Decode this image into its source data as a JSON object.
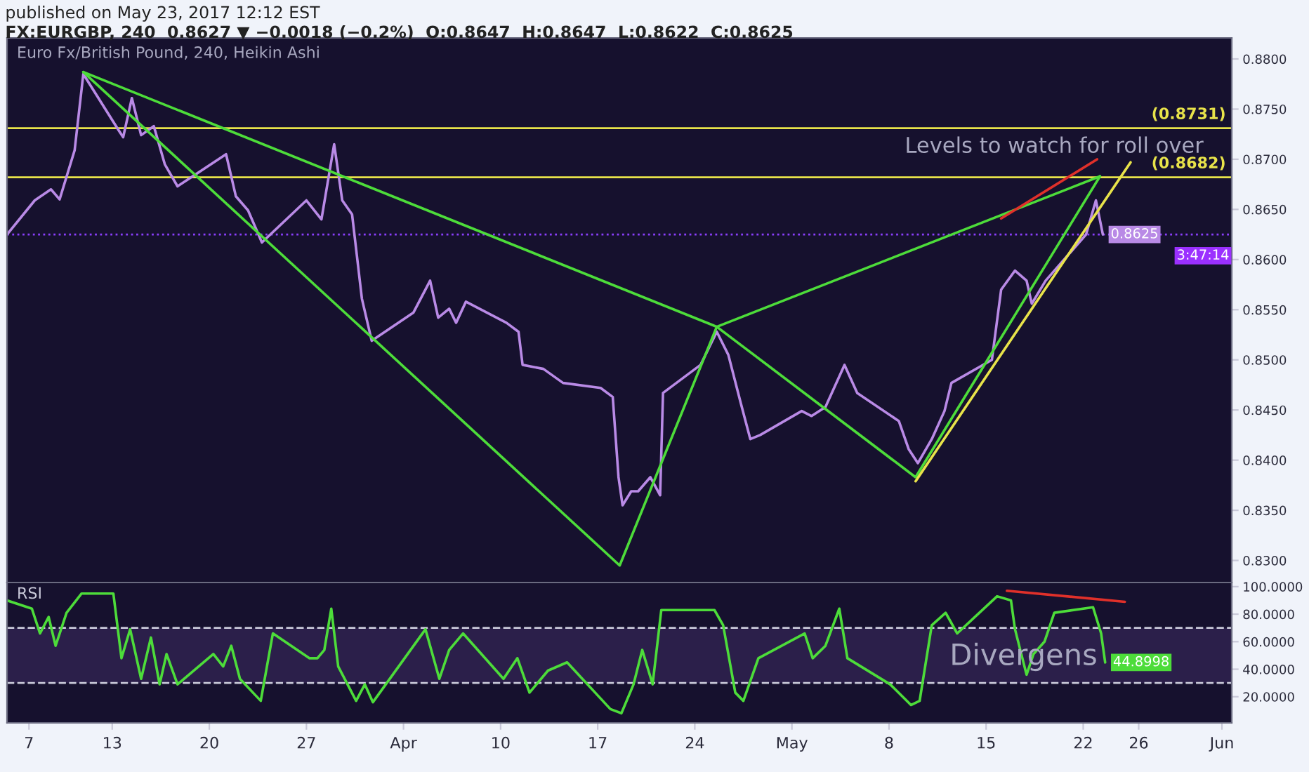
{
  "chart_data": [
    {
      "type": "line",
      "title": "published on May 23, 2017 12:12 EST",
      "subtitle": "FX:EURGBP, 240  0.8627 ▼ −0.0018 (−0.2%)  O:0.8647  H:0.8647  L:0.8622  C:0.8625",
      "annotations": [
        "Euro Fx/British Pound, 240, Heikin Ashi",
        "3:47:14",
        "Levels to watch for roll over"
      ],
      "series": [
        {
          "color": "#b98ae6",
          "x": [
            "2017-03-05T10:00",
            "2017-03-07T10:00",
            "2017-03-08T14:00",
            "2017-03-09T05:00",
            "2017-03-10T07:00",
            "2017-03-10T22:00",
            "2017-03-13T11:00",
            "2017-03-13T19:00",
            "2017-03-14T10:00",
            "2017-03-15T02:00",
            "2017-03-16T00:00",
            "2017-03-16T19:00",
            "2017-03-17T17:00",
            "2017-03-21T05:00",
            "2017-03-21T22:00",
            "2017-03-22T19:00",
            "2017-03-23T19:00",
            "2017-03-27T00:00",
            "2017-03-28T02:00",
            "2017-03-29T00:00",
            "2017-03-29T14:00",
            "2017-03-30T07:00",
            "2017-03-31T00:00",
            "2017-03-31T17:00",
            "2017-04-03T17:00",
            "2017-04-04T22:00",
            "2017-04-05T12:00",
            "2017-04-06T07:00",
            "2017-04-06T19:00",
            "2017-04-07T12:00",
            "2017-04-10T10:00",
            "2017-04-11T07:00",
            "2017-04-11T14:00",
            "2017-04-13T02:00",
            "2017-04-14T12:00",
            "2017-04-17T05:00",
            "2017-04-18T02:00",
            "2017-04-18T12:00",
            "2017-04-18T19:00",
            "2017-04-19T10:00",
            "2017-04-19T22:00",
            "2017-04-20T19:00",
            "2017-04-21T12:00",
            "2017-04-21T17:00",
            "2017-04-24T10:00",
            "2017-04-25T14:00",
            "2017-04-26T10:00",
            "2017-04-27T07:00",
            "2017-04-28T00:00",
            "2017-04-28T17:00",
            "2017-05-01T17:00",
            "2017-05-02T10:00",
            "2017-05-03T10:00",
            "2017-05-04T19:00",
            "2017-05-05T17:00",
            "2017-05-08T17:00",
            "2017-05-09T10:00",
            "2017-05-10T02:00",
            "2017-05-11T02:00",
            "2017-05-12T00:00",
            "2017-05-12T12:00",
            "2017-05-15T10:00",
            "2017-05-16T02:00",
            "2017-05-17T02:00",
            "2017-05-17T22:00",
            "2017-05-18T07:00",
            "2017-05-19T07:00",
            "2017-05-22T05:00",
            "2017-05-22T22:00",
            "2017-05-23T10:00"
          ],
          "values": [
            0.8625,
            0.8659,
            0.867,
            0.866,
            0.8709,
            0.8785,
            0.8729,
            0.8722,
            0.8761,
            0.8724,
            0.8733,
            0.8695,
            0.8673,
            0.8705,
            0.8663,
            0.8649,
            0.8617,
            0.8659,
            0.864,
            0.8715,
            0.8659,
            0.8645,
            0.8561,
            0.8519,
            0.8547,
            0.8579,
            0.8542,
            0.8551,
            0.8537,
            0.8558,
            0.8537,
            0.8528,
            0.8495,
            0.8491,
            0.8477,
            0.8472,
            0.8463,
            0.8383,
            0.8355,
            0.8369,
            0.8369,
            0.8383,
            0.8365,
            0.8467,
            0.8495,
            0.8528,
            0.8505,
            0.8458,
            0.8421,
            0.8425,
            0.8449,
            0.8444,
            0.8453,
            0.8495,
            0.8467,
            0.8439,
            0.8411,
            0.8397,
            0.8421,
            0.8449,
            0.8477,
            0.85,
            0.857,
            0.8589,
            0.8579,
            0.8556,
            0.8579,
            0.8625,
            0.8659,
            0.8625
          ],
          "value_labels": [
            null,
            null,
            null,
            null,
            null,
            null,
            null,
            null,
            null,
            null,
            null,
            null,
            null,
            null,
            null,
            null,
            null,
            null,
            null,
            null,
            null,
            null,
            null,
            null,
            null,
            null,
            null,
            null,
            null,
            null,
            null,
            null,
            null,
            null,
            null,
            null,
            null,
            null,
            null,
            null,
            null,
            null,
            null,
            null,
            null,
            null,
            null,
            null,
            null,
            null,
            null,
            null,
            null,
            null,
            null,
            null,
            null,
            null,
            null,
            null,
            null,
            null,
            null,
            null,
            null,
            null,
            null,
            null,
            null,
            "0.8625"
          ]
        },
        {
          "color": "#4ddc3a",
          "x": [
            "2017-03-10T22:00",
            "2017-04-18T14:00",
            "2017-04-25T14:00",
            "2017-05-09T22:00",
            "2017-05-23T05:00"
          ],
          "values": [
            0.8787,
            0.8295,
            0.8533,
            0.8383,
            0.8683
          ]
        },
        {
          "color": "#4ddc3a",
          "x": [
            "2017-03-10T22:00",
            "2017-04-25T14:00"
          ],
          "values": [
            0.8787,
            0.8533
          ]
        },
        {
          "color": "#4ddc3a",
          "x": [
            "2017-04-25T14:00",
            "2017-05-23T05:00"
          ],
          "values": [
            0.8533,
            0.8683
          ]
        },
        {
          "color": "#e8e34a",
          "x": [
            "2017-05-09T22:00",
            "2017-05-25T10:00"
          ],
          "values": [
            0.8379,
            0.8697
          ]
        },
        {
          "color": "#e0302a",
          "x": [
            "2017-05-16T02:00",
            "2017-05-23T00:00"
          ],
          "values": [
            0.8641,
            0.87
          ]
        }
      ],
      "ref_lines": [
        {
          "axis": "y",
          "value": 0.8731,
          "label": "(0.8731)",
          "color": "#e8e34a"
        },
        {
          "axis": "y",
          "value": 0.8682,
          "label": "(0.8682)",
          "color": "#e8e34a"
        },
        {
          "axis": "y",
          "value": 0.8625,
          "color": "#8a3ffc",
          "line_style": "dotted"
        }
      ],
      "xlim": [
        "2017-03-05T10:00",
        "2017-06-01T17:00"
      ],
      "ylim": [
        0.8278,
        0.8821
      ],
      "yticks": [
        {
          "value": 0.83,
          "label": "0.8300"
        },
        {
          "value": 0.835,
          "label": "0.8350"
        },
        {
          "value": 0.84,
          "label": "0.8400"
        },
        {
          "value": 0.845,
          "label": "0.8450"
        },
        {
          "value": 0.85,
          "label": "0.8500"
        },
        {
          "value": 0.855,
          "label": "0.8550"
        },
        {
          "value": 0.86,
          "label": "0.8600"
        },
        {
          "value": 0.865,
          "label": "0.8650"
        },
        {
          "value": 0.87,
          "label": "0.8700"
        },
        {
          "value": 0.875,
          "label": "0.8750"
        },
        {
          "value": 0.88,
          "label": "0.8800"
        }
      ],
      "tick_labels": "y"
    },
    {
      "type": "line",
      "title": "RSI",
      "annotations": [
        "Divergens"
      ],
      "series": [
        {
          "color": "#4ddc3a",
          "x": [
            "2017-03-05T10:00",
            "2017-03-07T05:00",
            "2017-03-07T19:00",
            "2017-03-08T10:00",
            "2017-03-08T22:00",
            "2017-03-09T17:00",
            "2017-03-10T19:00",
            "2017-03-13T02:00",
            "2017-03-13T16:00",
            "2017-03-14T07:00",
            "2017-03-15T02:00",
            "2017-03-15T19:00",
            "2017-03-16T10:00",
            "2017-03-16T22:00",
            "2017-03-17T17:00",
            "2017-03-20T07:00",
            "2017-03-21T00:00",
            "2017-03-21T14:00",
            "2017-03-22T05:00",
            "2017-03-23T17:00",
            "2017-03-24T14:00",
            "2017-03-27T05:00",
            "2017-03-27T19:00",
            "2017-03-28T07:00",
            "2017-03-28T19:00",
            "2017-03-29T07:00",
            "2017-03-30T14:00",
            "2017-03-31T05:00",
            "2017-03-31T19:00",
            "2017-04-04T14:00",
            "2017-04-05T14:00",
            "2017-04-06T07:00",
            "2017-04-07T07:00",
            "2017-04-10T05:00",
            "2017-04-11T05:00",
            "2017-04-12T02:00",
            "2017-04-13T10:00",
            "2017-04-14T19:00",
            "2017-04-17T22:00",
            "2017-04-18T17:00",
            "2017-04-19T14:00",
            "2017-04-20T05:00",
            "2017-04-20T23:00",
            "2017-04-21T14:00",
            "2017-04-25T10:00",
            "2017-04-26T01:00",
            "2017-04-26T22:00",
            "2017-04-27T12:00",
            "2017-04-28T14:00",
            "2017-05-01T22:00",
            "2017-05-02T12:00",
            "2017-05-03T10:00",
            "2017-05-04T10:00",
            "2017-05-05T00:00",
            "2017-05-08T02:00",
            "2017-05-09T14:00",
            "2017-05-10T05:00",
            "2017-05-11T02:00",
            "2017-05-12T02:00",
            "2017-05-12T22:00",
            "2017-05-15T19:00",
            "2017-05-16T19:00",
            "2017-05-17T02:00",
            "2017-05-17T22:00",
            "2017-05-18T10:00",
            "2017-05-19T05:00",
            "2017-05-19T22:00",
            "2017-05-22T17:00",
            "2017-05-23T07:00",
            "2017-05-23T14:00"
          ],
          "values": [
            90,
            84,
            66,
            78,
            57,
            81,
            95,
            95,
            48,
            69,
            33,
            63,
            29,
            51,
            29,
            51,
            42,
            57,
            33,
            17,
            66,
            48,
            48,
            54,
            84,
            42,
            17,
            29,
            16,
            69,
            33,
            54,
            66,
            33,
            48,
            23,
            39,
            45,
            11,
            8,
            29,
            54,
            29,
            83,
            83,
            72,
            23,
            17,
            48,
            66,
            48,
            57,
            84,
            48,
            29,
            14,
            17,
            72,
            81,
            66,
            93,
            90,
            69,
            36,
            51,
            60,
            81,
            85,
            66,
            44.8998
          ],
          "value_labels": [
            null,
            null,
            null,
            null,
            null,
            null,
            null,
            null,
            null,
            null,
            null,
            null,
            null,
            null,
            null,
            null,
            null,
            null,
            null,
            null,
            null,
            null,
            null,
            null,
            null,
            null,
            null,
            null,
            null,
            null,
            null,
            null,
            null,
            null,
            null,
            null,
            null,
            null,
            null,
            null,
            null,
            null,
            null,
            null,
            null,
            null,
            null,
            null,
            null,
            null,
            null,
            null,
            null,
            null,
            null,
            null,
            null,
            null,
            null,
            null,
            null,
            null,
            null,
            null,
            null,
            null,
            null,
            null,
            null,
            "44.8998"
          ]
        },
        {
          "color": "#e0302a",
          "x": [
            "2017-05-16T12:00",
            "2017-05-25T00:00"
          ],
          "values": [
            97,
            89
          ]
        }
      ],
      "ref_lines": [
        {
          "axis": "y",
          "value": 70,
          "color": "#c8c8d8",
          "line_style": "dashed"
        },
        {
          "axis": "y",
          "value": 30,
          "color": "#c8c8d8",
          "line_style": "dashed"
        }
      ],
      "bands": [
        {
          "axis": "y",
          "from": 30,
          "to": 70,
          "color": "#3a2a5e"
        }
      ],
      "xlim": [
        "2017-03-05T10:00",
        "2017-06-01T17:00"
      ],
      "xticks": [
        {
          "value": "2017-03-07",
          "label": "7"
        },
        {
          "value": "2017-03-13",
          "label": "13"
        },
        {
          "value": "2017-03-20",
          "label": "20"
        },
        {
          "value": "2017-03-27",
          "label": "27"
        },
        {
          "value": "2017-04-03",
          "label": "Apr"
        },
        {
          "value": "2017-04-10",
          "label": "10"
        },
        {
          "value": "2017-04-17",
          "label": "17"
        },
        {
          "value": "2017-04-24",
          "label": "24"
        },
        {
          "value": "2017-05-01",
          "label": "May"
        },
        {
          "value": "2017-05-08",
          "label": "8"
        },
        {
          "value": "2017-05-15",
          "label": "15"
        },
        {
          "value": "2017-05-22",
          "label": "22"
        },
        {
          "value": "2017-05-26",
          "label": "26"
        },
        {
          "value": "2017-06-01",
          "label": "Jun"
        }
      ],
      "ylim": [
        1,
        103
      ],
      "yticks": [
        {
          "value": 20,
          "label": "20.0000"
        },
        {
          "value": 40,
          "label": "40.0000"
        },
        {
          "value": 60,
          "label": "60.0000"
        },
        {
          "value": 80,
          "label": "80.0000"
        },
        {
          "value": 100,
          "label": "100.0000"
        }
      ]
    }
  ]
}
